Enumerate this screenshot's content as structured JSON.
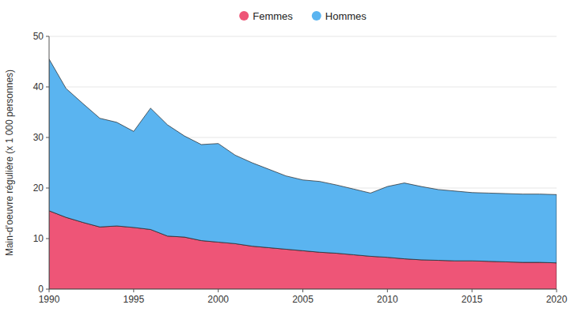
{
  "chart_data": {
    "type": "area",
    "stacked": true,
    "ylabel": "Main-d’oeuvre régulière (x 1 000 personnes)",
    "x": [
      1990,
      1991,
      1992,
      1993,
      1994,
      1995,
      1996,
      1997,
      1998,
      1999,
      2000,
      2001,
      2002,
      2003,
      2004,
      2005,
      2006,
      2007,
      2008,
      2009,
      2010,
      2011,
      2012,
      2013,
      2014,
      2015,
      2016,
      2017,
      2018,
      2019,
      2020
    ],
    "series": [
      {
        "name": "Femmes",
        "color": "#ee5577",
        "values": [
          15.5,
          14.2,
          13.2,
          12.3,
          12.5,
          12.2,
          11.8,
          10.5,
          10.3,
          9.6,
          9.3,
          9.0,
          8.5,
          8.2,
          7.9,
          7.6,
          7.3,
          7.1,
          6.8,
          6.5,
          6.3,
          6.0,
          5.8,
          5.7,
          5.6,
          5.6,
          5.5,
          5.4,
          5.3,
          5.3,
          5.2
        ]
      },
      {
        "name": "Hommes",
        "color": "#5ab4f0",
        "values": [
          30.0,
          25.5,
          23.5,
          21.5,
          20.5,
          19.0,
          24.0,
          22.0,
          20.0,
          19.0,
          19.5,
          17.5,
          16.5,
          15.5,
          14.5,
          14.0,
          14.0,
          13.5,
          13.0,
          12.5,
          14.0,
          15.0,
          14.5,
          14.0,
          13.8,
          13.5,
          13.5,
          13.5,
          13.5,
          13.5,
          13.5
        ]
      }
    ],
    "xlim": [
      1990,
      2020
    ],
    "ylim": [
      0,
      50
    ],
    "xticks": [
      1990,
      1995,
      2000,
      2005,
      2010,
      2015,
      2020
    ],
    "yticks": [
      0,
      10,
      20,
      30,
      40,
      50
    ],
    "grid": true,
    "legend": "top"
  }
}
